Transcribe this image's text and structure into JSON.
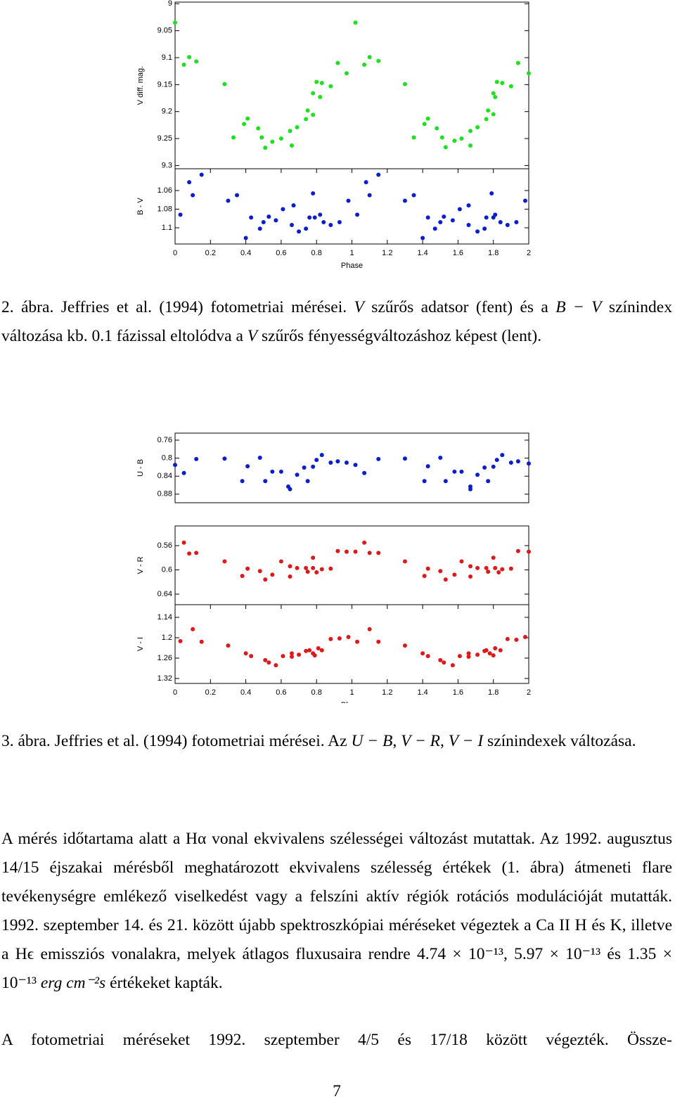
{
  "chart_data": [
    {
      "type": "scatter",
      "y_label": "V diff. mag.",
      "color": "#1ee01e",
      "xlim": [
        0,
        2
      ],
      "ylim": [
        9.306,
        8.997
      ],
      "yticks": [
        9,
        9.05,
        9.1,
        9.15,
        9.2,
        9.25,
        9.3
      ],
      "x": [
        0,
        0.05,
        0.08,
        0.12,
        0.28,
        0.33,
        0.39,
        0.41,
        0.47,
        0.49,
        0.51,
        0.55,
        0.6,
        0.65,
        0.66,
        0.69,
        0.74,
        0.75,
        0.78,
        0.78,
        0.8,
        0.82,
        0.83,
        0.88,
        0.92,
        0.97,
        1.02,
        1.07,
        1.1,
        1.15,
        1.3,
        1.35,
        1.41,
        1.43,
        1.48,
        1.51,
        1.53,
        1.58,
        1.62,
        1.67,
        1.67,
        1.71,
        1.76,
        1.77,
        1.8,
        1.8,
        1.81,
        1.82,
        1.85,
        1.9,
        1.94,
        2
      ],
      "values": [
        9.035,
        9.113,
        9.099,
        9.107,
        9.149,
        9.248,
        9.223,
        9.213,
        9.231,
        9.248,
        9.267,
        9.256,
        9.25,
        9.236,
        9.263,
        9.229,
        9.214,
        9.198,
        9.206,
        9.166,
        9.145,
        9.173,
        9.147,
        9.153,
        9.11,
        9.129,
        9.035,
        9.113,
        9.099,
        9.106,
        9.149,
        9.248,
        9.223,
        9.213,
        9.231,
        9.248,
        9.266,
        9.254,
        9.25,
        9.236,
        9.263,
        9.229,
        9.214,
        9.198,
        9.205,
        9.166,
        9.173,
        9.145,
        9.147,
        9.153,
        9.11,
        9.129
      ]
    },
    {
      "type": "scatter",
      "y_label": "B - V",
      "color": "#0a1ecc",
      "xlim": [
        0,
        2
      ],
      "ylim": [
        1.1174,
        1.0366
      ],
      "yticks": [
        1.06,
        1.08,
        1.1
      ],
      "xticks": [
        0,
        0.2,
        0.4,
        0.6,
        0.8,
        1,
        1.2,
        1.4,
        1.6,
        1.8,
        2
      ],
      "x_label": "Phase",
      "x": [
        0.03,
        0.08,
        0.1,
        0.15,
        0.3,
        0.35,
        0.4,
        0.43,
        0.48,
        0.5,
        0.53,
        0.57,
        0.61,
        0.67,
        0.66,
        0.7,
        0.74,
        0.76,
        0.78,
        0.79,
        0.82,
        0.84,
        0.88,
        0.93,
        0.98,
        1.03,
        1.08,
        1.1,
        1.15,
        1.3,
        1.35,
        1.4,
        1.43,
        1.47,
        1.5,
        1.52,
        1.57,
        1.61,
        1.66,
        1.66,
        1.71,
        1.75,
        1.76,
        1.79,
        1.8,
        1.81,
        1.84,
        1.88,
        1.93,
        1.98
      ],
      "values": [
        1.086,
        1.051,
        1.065,
        1.043,
        1.071,
        1.065,
        1.111,
        1.089,
        1.101,
        1.094,
        1.088,
        1.092,
        1.08,
        1.076,
        1.097,
        1.104,
        1.101,
        1.089,
        1.063,
        1.089,
        1.086,
        1.094,
        1.097,
        1.094,
        1.071,
        1.086,
        1.051,
        1.065,
        1.043,
        1.071,
        1.065,
        1.111,
        1.089,
        1.101,
        1.094,
        1.088,
        1.092,
        1.08,
        1.076,
        1.097,
        1.104,
        1.101,
        1.089,
        1.063,
        1.089,
        1.086,
        1.094,
        1.097,
        1.094,
        1.071
      ]
    },
    {
      "type": "scatter",
      "y_label": "U - B",
      "color": "#0a1ecc",
      "xlim": [
        0,
        2
      ],
      "ylim": [
        0.899,
        0.7444
      ],
      "yticks": [
        0.76,
        0.8,
        0.84,
        0.88
      ],
      "x": [
        0,
        0.05,
        0.12,
        0.28,
        0.38,
        0.41,
        0.48,
        0.51,
        0.55,
        0.6,
        0.64,
        0.65,
        0.69,
        0.73,
        0.75,
        0.78,
        0.8,
        0.83,
        0.88,
        0.92,
        0.97,
        1.02,
        1.07,
        1.15,
        1.3,
        1.41,
        1.43,
        1.5,
        1.53,
        1.58,
        1.62,
        1.67,
        1.67,
        1.71,
        1.75,
        1.77,
        1.8,
        1.82,
        1.85,
        1.9,
        1.94,
        2
      ],
      "values": [
        0.815,
        0.833,
        0.802,
        0.801,
        0.851,
        0.818,
        0.799,
        0.851,
        0.83,
        0.83,
        0.863,
        0.869,
        0.837,
        0.821,
        0.851,
        0.819,
        0.804,
        0.793,
        0.81,
        0.807,
        0.81,
        0.815,
        0.833,
        0.802,
        0.801,
        0.851,
        0.818,
        0.799,
        0.851,
        0.83,
        0.83,
        0.863,
        0.869,
        0.837,
        0.821,
        0.851,
        0.819,
        0.804,
        0.793,
        0.81,
        0.807,
        0.812
      ]
    },
    {
      "type": "scatter",
      "y_label": "V - R",
      "color": "#dc1a1a",
      "xlim": [
        0,
        2
      ],
      "ylim": [
        0.6574,
        0.5275
      ],
      "yticks": [
        0.56,
        0.6,
        0.64
      ],
      "x": [
        0.05,
        0.08,
        0.12,
        0.28,
        0.38,
        0.41,
        0.48,
        0.51,
        0.55,
        0.6,
        0.65,
        0.65,
        0.69,
        0.74,
        0.75,
        0.78,
        0.78,
        0.8,
        0.83,
        0.88,
        0.92,
        0.97,
        1.02,
        1.07,
        1.1,
        1.15,
        1.3,
        1.41,
        1.43,
        1.5,
        1.53,
        1.58,
        1.62,
        1.67,
        1.67,
        1.71,
        1.76,
        1.77,
        1.8,
        1.81,
        1.83,
        1.85,
        1.9,
        1.94,
        2
      ],
      "values": [
        0.555,
        0.573,
        0.572,
        0.586,
        0.61,
        0.598,
        0.602,
        0.616,
        0.608,
        0.586,
        0.594,
        0.611,
        0.597,
        0.597,
        0.603,
        0.58,
        0.597,
        0.604,
        0.599,
        0.598,
        0.569,
        0.57,
        0.57,
        0.555,
        0.572,
        0.572,
        0.586,
        0.61,
        0.598,
        0.602,
        0.616,
        0.608,
        0.586,
        0.594,
        0.611,
        0.597,
        0.597,
        0.603,
        0.58,
        0.597,
        0.604,
        0.599,
        0.598,
        0.569,
        0.57
      ]
    },
    {
      "type": "scatter",
      "y_label": "V - I",
      "color": "#dc1a1a",
      "xlim": [
        0,
        2
      ],
      "ylim": [
        1.3346,
        1.1027
      ],
      "yticks": [
        1.14,
        1.2,
        1.26,
        1.32
      ],
      "xticks": [
        0,
        0.2,
        0.4,
        0.6,
        0.8,
        1,
        1.2,
        1.4,
        1.6,
        1.8,
        2
      ],
      "x_label": "Phase",
      "x": [
        0.03,
        0.1,
        0.15,
        0.3,
        0.4,
        0.43,
        0.51,
        0.53,
        0.57,
        0.61,
        0.66,
        0.66,
        0.7,
        0.74,
        0.76,
        0.78,
        0.79,
        0.81,
        0.83,
        0.88,
        0.93,
        0.98,
        1.03,
        1.1,
        1.15,
        1.3,
        1.4,
        1.43,
        1.5,
        1.52,
        1.57,
        1.61,
        1.66,
        1.66,
        1.71,
        1.75,
        1.76,
        1.78,
        1.8,
        1.81,
        1.84,
        1.88,
        1.93,
        1.98
      ],
      "values": [
        1.21,
        1.175,
        1.212,
        1.223,
        1.246,
        1.254,
        1.266,
        1.273,
        1.281,
        1.254,
        1.246,
        1.256,
        1.25,
        1.239,
        1.237,
        1.246,
        1.252,
        1.231,
        1.237,
        1.204,
        1.202,
        1.198,
        1.212,
        1.175,
        1.212,
        1.223,
        1.246,
        1.254,
        1.266,
        1.273,
        1.281,
        1.254,
        1.246,
        1.256,
        1.25,
        1.239,
        1.237,
        1.246,
        1.252,
        1.231,
        1.237,
        1.204,
        1.206,
        1.198
      ]
    }
  ],
  "captions": {
    "figure2": [
      "2. ábra. Jeffries et al. (1994) fotometriai mérései. ",
      "V",
      " szűrős adatsor (fent) és a ",
      "B − V",
      " színindex változása kb. 0.1 fázissal eltolódva a ",
      "V",
      " szűrős fényességváltozáshoz képest (lent)."
    ],
    "figure3": [
      "3. ábra. Jeffries et al. (1994) fotometriai mérései. Az ",
      "U − B",
      ", ",
      "V − R",
      ", ",
      "V − I",
      " színindexek változása."
    ]
  },
  "paragraphs": [
    [
      "A mérés időtartama alatt a Hα vonal ekvivalens szélességei változást mutattak. Az 1992. augusztus 14/15 éjszakai mérésből meghatározott ekvivalens szélesség értékek (1. ábra) átmeneti flare tevékenységre emlékező viselkedést vagy a felszíni aktív régiók rotációs modulációját mutatták. 1992. szeptember 14. és 21. között újabb spektroszkópiai méréseket végeztek a Ca II H és K, illetve a Hϵ emissziós vonalakra, melyek átlagos fluxusaira rendre 4.74 × 10⁻¹³, 5.97 × 10⁻¹³ és 1.35 × 10⁻¹³ ",
      "erg cm⁻²s",
      " értékeket kapták."
    ],
    [
      "A fotometriai méréseket 1992. szeptember 4/5 és 17/18 között végezték. Össze-"
    ]
  ],
  "page_number": "7"
}
